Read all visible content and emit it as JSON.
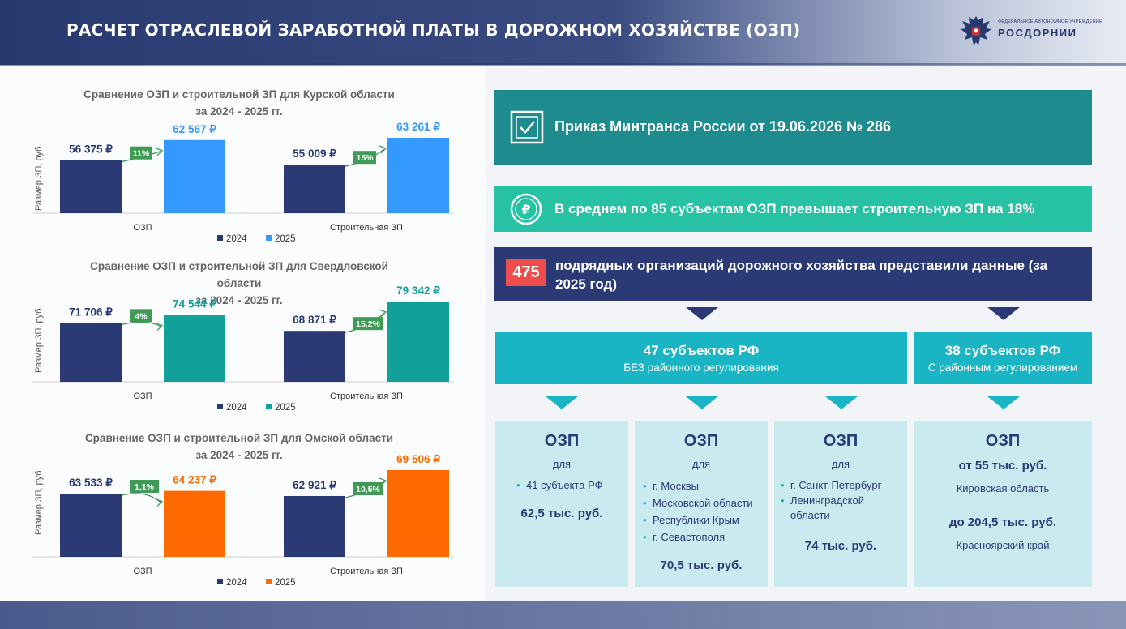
{
  "header": {
    "title": "РАСЧЕТ ОТРАСЛЕВОЙ ЗАРАБОТНОЙ ПЛАТЫ В ДОРОЖНОМ ХОЗЯЙСТВЕ (ОЗП)",
    "logo_sub": "ФЕДЕРАЛЬНОЕ АВТОНОМНОЕ УЧРЕЖДЕНИЕ",
    "logo_name": "РОСДОРНИИ"
  },
  "colors": {
    "navy": "#2b3a75",
    "blue": "#3399ff",
    "teal": "#12a19a",
    "orange": "#ff6a00",
    "green_badge": "#3f9a55"
  },
  "chart_data": [
    {
      "type": "bar",
      "title_line1": "Сравнение ОЗП и строительной ЗП для Курской области",
      "title_line2": "за 2024 - 2025 гг.",
      "ylabel": "Размер ЗП, руб.",
      "categories": [
        "ОЗП",
        "Строительная ЗП"
      ],
      "series": [
        {
          "name": "2024",
          "values": [
            56375,
            55009
          ],
          "labels": [
            "56 375 ₽",
            "55 009 ₽"
          ]
        },
        {
          "name": "2025",
          "values": [
            62567,
            63261
          ],
          "labels": [
            "62 567 ₽",
            "63 261 ₽"
          ]
        }
      ],
      "growth": [
        "11%",
        "15%"
      ],
      "accent": "#3399ff"
    },
    {
      "type": "bar",
      "title_line1": "Сравнение ОЗП и строительной ЗП для Свердловской",
      "title_line2": "области",
      "title_line3": "за 2024 - 2025 гг.",
      "ylabel": "Размер ЗП, руб.",
      "categories": [
        "ОЗП",
        "Строительная ЗП"
      ],
      "series": [
        {
          "name": "2024",
          "values": [
            71706,
            68871
          ],
          "labels": [
            "71 706 ₽",
            "68 871 ₽"
          ]
        },
        {
          "name": "2025",
          "values": [
            74544,
            79342
          ],
          "labels": [
            "74 544 ₽",
            "79 342 ₽"
          ]
        }
      ],
      "growth": [
        "4%",
        "15,2%"
      ],
      "accent": "#12a19a"
    },
    {
      "type": "bar",
      "title_line1": "Сравнение ОЗП и строительной ЗП для Омской области",
      "title_line2": "за 2024 - 2025 гг.",
      "ylabel": "Размер ЗП, руб.",
      "categories": [
        "ОЗП",
        "Строительная ЗП"
      ],
      "series": [
        {
          "name": "2024",
          "values": [
            63533,
            62921
          ],
          "labels": [
            "63 533 ₽",
            "62 921 ₽"
          ]
        },
        {
          "name": "2025",
          "values": [
            64237,
            69506
          ],
          "labels": [
            "64 237 ₽",
            "69 506 ₽"
          ]
        }
      ],
      "growth": [
        "1,1%",
        "10,5%"
      ],
      "accent": "#ff6a00"
    }
  ],
  "panels": {
    "order_text": "Приказ Минтранса России от 19.06.2026 № 286",
    "order_icon": "checkbox-icon",
    "average_text": "В среднем по 85 субъектам ОЗП превышает строительную ЗП на 18%",
    "average_icon": "ruble-icon",
    "count_badge": "475",
    "count_text": "подрядных организаций дорожного хозяйства представили данные (за 2025 год)"
  },
  "groups": [
    {
      "title": "47 субъектов РФ",
      "subtitle": "БЕЗ районного регулирования"
    },
    {
      "title": "38 субъектов РФ",
      "subtitle": "С районным регулированием"
    }
  ],
  "boxes": [
    {
      "title": "ОЗП",
      "for": "для",
      "items": [
        "41 субъекта РФ"
      ],
      "value": "62,5 тыс. руб."
    },
    {
      "title": "ОЗП",
      "for": "для",
      "items": [
        "г. Москвы",
        "Московской области",
        "Республики Крым",
        "г. Севастополя"
      ],
      "value": "70,5 тыс. руб."
    },
    {
      "title": "ОЗП",
      "for": "для",
      "items": [
        "г. Санкт-Петербург",
        "Ленинградской области"
      ],
      "value": "74 тыс. руб."
    },
    {
      "title": "ОЗП",
      "from": "от 55 тыс. руб.",
      "from_region": "Кировская область",
      "to": "до 204,5 тыс. руб.",
      "to_region": "Красноярский край"
    }
  ]
}
